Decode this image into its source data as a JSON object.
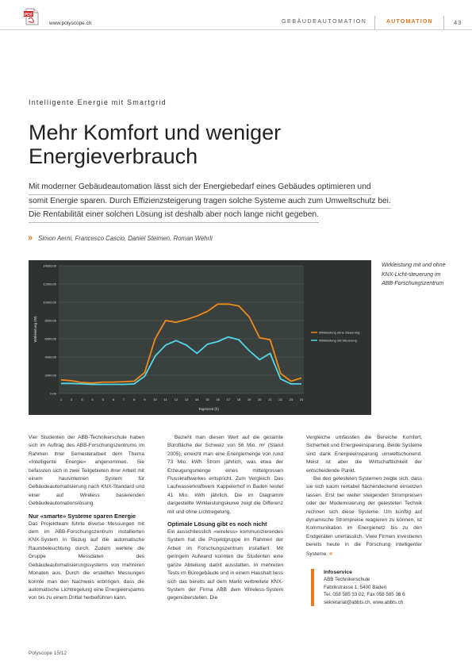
{
  "header": {
    "url": "www.polyscope.ch",
    "section": "GEBÄUDEAUTOMATION",
    "category": "AUTOMATION",
    "page_number": "43",
    "pdf_icon": "pdf-file-icon",
    "accent_color": "#e8771e"
  },
  "article": {
    "kicker": "Intelligente Energie mit Smartgrid",
    "title": "Mehr Komfort und weniger Energieverbrauch",
    "lead": [
      "Mit moderner Gebäudeautomation lässt sich der Energiebedarf eines Gebäudes optimieren und",
      "somit Energie sparen. Durch Effizienzsteigerung tragen solche Systeme auch zum Umweltschutz bei.",
      "Die Rentabilität einer solchen Lösung ist deshalb aber noch lange nicht gegeben."
    ],
    "authors_mark": "»",
    "authors": "Simon Aerni, Francesco Cascio, Daniel Steimen, Roman Wehrli"
  },
  "figure": {
    "caption": "Wirkleistung mit und ohne KNX-Licht-steuerung im ABB-Forschungszentrum"
  },
  "chart_data": {
    "type": "line",
    "title": "",
    "xlabel": "Tageszeit (h)",
    "ylabel": "Wirkleistung (W)",
    "x": [
      1,
      2,
      3,
      4,
      5,
      6,
      7,
      8,
      9,
      10,
      11,
      12,
      13,
      14,
      15,
      16,
      17,
      18,
      19,
      20,
      21,
      22,
      23,
      24
    ],
    "ylim": [
      0,
      14000
    ],
    "yticks": [
      0,
      2000,
      4000,
      6000,
      8000,
      10000,
      12000,
      14000
    ],
    "ytick_labels": [
      "0.00",
      "2000.00",
      "4000.00",
      "6000.00",
      "8000.00",
      "10000.00",
      "12000.00",
      "14000.00"
    ],
    "grid": true,
    "legend_position": "right",
    "series": [
      {
        "name": "Wirkleistung ohne Steuerung",
        "color": "#f08a1c",
        "values": [
          1500,
          1400,
          1200,
          1150,
          1250,
          1250,
          1300,
          1350,
          2300,
          6000,
          8000,
          7800,
          8100,
          8500,
          9000,
          9800,
          9800,
          9600,
          8400,
          6100,
          5900,
          2200,
          1350,
          1700
        ]
      },
      {
        "name": "Wirkleistung mit Steuerung",
        "color": "#4fd8e8",
        "values": [
          1100,
          1100,
          1050,
          1000,
          1000,
          1000,
          1000,
          1050,
          1900,
          4100,
          5300,
          5800,
          5300,
          4400,
          5400,
          5700,
          6200,
          5900,
          4700,
          3700,
          4400,
          1600,
          1050,
          1050
        ]
      }
    ]
  },
  "columns": {
    "col1_p1": "Vier Studenten der ABB-Technikerschule haben sich im Auftrag des ABB-Forschungszentrums im Rahmen ihrer Semesterarbeit dem Thema «Intelligente Energie» angenommen. Sie befassten sich in zwei Teilgebieten ihrer Arbeit mit einem hausinternen System für Gebäudeautomatisierung nach KNX-Standard und einer auf Wireless basierenden Gebäudeautomationslösung.",
    "col1_h": "Nur «smarte» Systeme sparen Energie",
    "col1_p2": "Das Projektteam führte diverse Messungen mit dem im ABB-Forschungszentrum installierten KNX-System in Bezug auf die automatische Raumbeleuchtung durch. Zudem wertete die Gruppe Messdaten des Gebäudeautomatisierungssystems von mehreren Monaten aus. Durch die erstellten Messungen konnte man den Nachweis erbringen, dass die automatische Lichtregelung eine Energieersparnis von bis zu einem Drittel herbeiführen kann.",
    "col2_p1": "Bezieht man diesen Wert auf die gesamte Bürofläche der Schweiz von 56 Mio. m² (Stand 2005), erreicht man eine Energiemenge von rund 73 Mio. kWh Strom jährlich, was etwa der Erzeugungsmenge eines mittelgrossen Flusskraftwerkes entspricht. Zum Vergleich: Das Laufwasserkraftwerk Kappelerhof in Baden leistet 41 Mio. kWh jährlich. Die im Diagramm dargestellte Wirkleistungskurve zeigt die Differenz mit und ohne Lichtregelung.",
    "col2_h": "Optimale Lösung gibt es noch nicht",
    "col2_p2": "Ein ausschliesslich «wireless» kommunizierendes System hat die Projektgruppe im Rahmen der Arbeit im Forschungszentrum installiert. Mit geringem Aufwand konnten die Studenten eine ganze Abteilung damit ausstatten. In mehreren Tests im Bürogebäude und in einem Haushalt liess sich das bereits auf dem Markt verbreitete KNX-System der Firma ABB dem Wireless-System gegenüberstellen. Die",
    "col3_p1": "Vergleiche umfassten die Bereiche Komfort, Sicherheit und Energieeinsparung. Beide Systeme sind dank Energieeinsparung umweltschonend. Meist ist aber die Wirtschaftlichkeit der entscheidende Punkt.",
    "col3_p2": "Bei den getesteten Systemen zeigte sich, dass sie sich kaum rentabel flächendeckend einsetzen lassen. Erst bei weiter steigenden Strompreisen oder der Modernisierung der getesteten Technik rechnen sich diese Systeme. Um künftig auf dynamische Strompreise reagieren zu können, ist Kommunikation im Energienetz bis zu den Endgeräten unerlässlich. Viele Firmen investieren bereits heute in die Forschung intelligenter Systeme.",
    "col3_end": "«"
  },
  "infoservice": {
    "heading": "Infoservice",
    "line1": "ABB Technikerschule",
    "line2": "Fabrikstrasse 1, 5400 Baden",
    "line3": "Tel. 058 585 33 02, Fax 058 585 36 6",
    "line4": "sekretariat@abbts.ch, www.abbts.ch"
  },
  "footer": {
    "issue": "Polyscope 15/12"
  }
}
